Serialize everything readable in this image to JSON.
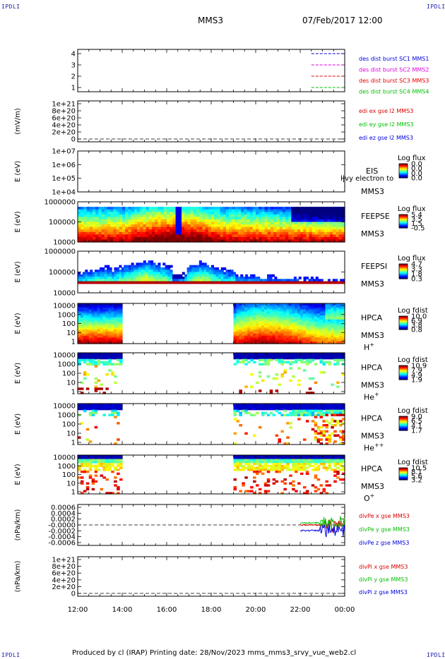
{
  "corner_marks": {
    "top_left": "IPDLI",
    "top_right": "IPDLI",
    "bottom_left": "IPDLI",
    "bottom_right": "IPDLI"
  },
  "header": {
    "mission": "MMS3",
    "datetime": "07/Feb/2017 12:00"
  },
  "footer": {
    "text": "Produced by cl (IRAP)   Printing date: 28/Nov/2023   mms_mms3_srvy_vue_web2.cl"
  },
  "colors": {
    "red": "#e00000",
    "green": "#00c000",
    "blue": "#0000e0",
    "magenta": "#e000e0",
    "black": "#000000"
  },
  "chart_data": [
    {
      "type": "line",
      "panel": "data-availability",
      "x_ticks": [
        "12:00",
        "14:00",
        "16:00",
        "18:00",
        "20:00",
        "22:00",
        "00:00"
      ],
      "yticks": [
        "4",
        "3",
        "2",
        "1"
      ],
      "series": [
        {
          "name": "des dist burst SC1 MMS1",
          "color": "#0000e0",
          "level": 4,
          "start_hour": 22.5,
          "end_hour": 24
        },
        {
          "name": "des dist burst SC2 MMS2",
          "color": "#e000e0",
          "level": 3,
          "start_hour": 22.5,
          "end_hour": 24
        },
        {
          "name": "des dist burst SC3 MMS3",
          "color": "#e00000",
          "level": 2,
          "start_hour": 22.5,
          "end_hour": 24
        },
        {
          "name": "des dist burst SC4 MMS4",
          "color": "#00c000",
          "level": 1,
          "start_hour": 22.5,
          "end_hour": 24
        }
      ]
    },
    {
      "type": "line",
      "panel": "edi-efield",
      "ylabel": "(mV/m)",
      "yticks": [
        "1e+21",
        "8e+20",
        "6e+20",
        "4e+20",
        "2e+20",
        "0"
      ],
      "series": [
        {
          "name": "edi ex gse l2 MMS3",
          "color": "#e00000"
        },
        {
          "name": "edi ey gse l2 MMS3",
          "color": "#00c000"
        },
        {
          "name": "edi ez gse l2 MMS3",
          "color": "#0000e0"
        }
      ]
    },
    {
      "type": "heatmap",
      "panel": "eis",
      "ylabel": "E (eV)",
      "yticks": [
        "1e+07",
        "1e+06",
        "1e+05",
        "1e+04"
      ],
      "instrument": "EIS",
      "spacecraft": "MMS3",
      "extra_label": "l|vy electron to",
      "colorbar": {
        "label": "Log flux",
        "ticks": [
          "0.0",
          "0.0",
          "0.0",
          "0.0"
        ]
      }
    },
    {
      "type": "heatmap",
      "panel": "feeps-e",
      "ylabel": "E (eV)",
      "yticks": [
        "1000000",
        "100000",
        "10000"
      ],
      "instrument": "FEEPSE",
      "spacecraft": "MMS3",
      "colorbar": {
        "label": "Log flux",
        "ticks": [
          "5.4",
          "3.5",
          "1.5",
          "-0.5"
        ]
      }
    },
    {
      "type": "heatmap",
      "panel": "feeps-i",
      "ylabel": "E (eV)",
      "yticks": [
        "1000000",
        "100000",
        "10000"
      ],
      "instrument": "FEEPSI",
      "spacecraft": "MMS3",
      "colorbar": {
        "label": "Log flux",
        "ticks": [
          "4.7",
          "3.3",
          "1.8",
          "0.3"
        ]
      }
    },
    {
      "type": "heatmap",
      "panel": "hpca-h",
      "ylabel": "E (eV)",
      "yticks": [
        "10000",
        "1000",
        "100",
        "10",
        "1"
      ],
      "instrument": "HPCA",
      "spacecraft": "MMS3",
      "species": "H",
      "species_charge": "+",
      "data_gap_hours": [
        14.0,
        19.0
      ],
      "colorbar": {
        "label": "Log fdist",
        "ticks": [
          "10.0",
          "6.9",
          "3.8",
          "0.8"
        ]
      }
    },
    {
      "type": "heatmap",
      "panel": "hpca-he",
      "ylabel": "E (eV)",
      "yticks": [
        "10000",
        "1000",
        "100",
        "10",
        "1"
      ],
      "instrument": "HPCA",
      "spacecraft": "MMS3",
      "species": "He",
      "species_charge": "+",
      "data_gap_hours": [
        14.0,
        19.0
      ],
      "colorbar": {
        "label": "Log fdist",
        "ticks": [
          "10.9",
          "7.9",
          "4.9",
          "1.9"
        ]
      }
    },
    {
      "type": "heatmap",
      "panel": "hpca-he2",
      "ylabel": "E (eV)",
      "yticks": [
        "10000",
        "1000",
        "100",
        "10",
        "1"
      ],
      "instrument": "HPCA",
      "spacecraft": "MMS3",
      "species": "He",
      "species_charge": "++",
      "data_gap_hours": [
        14.0,
        19.0
      ],
      "colorbar": {
        "label": "Log fdist",
        "ticks": [
          "9.0",
          "6.5",
          "4.1",
          "1.7"
        ]
      }
    },
    {
      "type": "heatmap",
      "panel": "hpca-o",
      "ylabel": "E (eV)",
      "yticks": [
        "10000",
        "1000",
        "100",
        "10",
        "1"
      ],
      "instrument": "HPCA",
      "spacecraft": "MMS3",
      "species": "O",
      "species_charge": "+",
      "data_gap_hours": [
        14.0,
        19.0
      ],
      "colorbar": {
        "label": "Log fdist",
        "ticks": [
          "10.5",
          "8.1",
          "5.6",
          "3.2"
        ]
      }
    },
    {
      "type": "line",
      "panel": "divpe",
      "ylabel": "(nPa/km)",
      "yticks": [
        "0.0006",
        "0.0004",
        "0.0002",
        "-0.0000",
        "-0.0002",
        "-0.0004",
        "-0.0006"
      ],
      "series": [
        {
          "name": "divPe x gse MMS3",
          "color": "#e00000"
        },
        {
          "name": "divPe y gse MMS3",
          "color": "#00c000"
        },
        {
          "name": "divPe z gse MMS3",
          "color": "#0000e0"
        }
      ]
    },
    {
      "type": "line",
      "panel": "divpi",
      "ylabel": "(nPa/km)",
      "yticks": [
        "1e+21",
        "8e+20",
        "6e+20",
        "4e+20",
        "2e+20",
        "0"
      ],
      "series": [
        {
          "name": "divPi x gse MMS3",
          "color": "#e00000"
        },
        {
          "name": "divPi y gse MMS3",
          "color": "#00c000"
        },
        {
          "name": "divPi z gse MMS3",
          "color": "#0000e0"
        }
      ]
    }
  ]
}
